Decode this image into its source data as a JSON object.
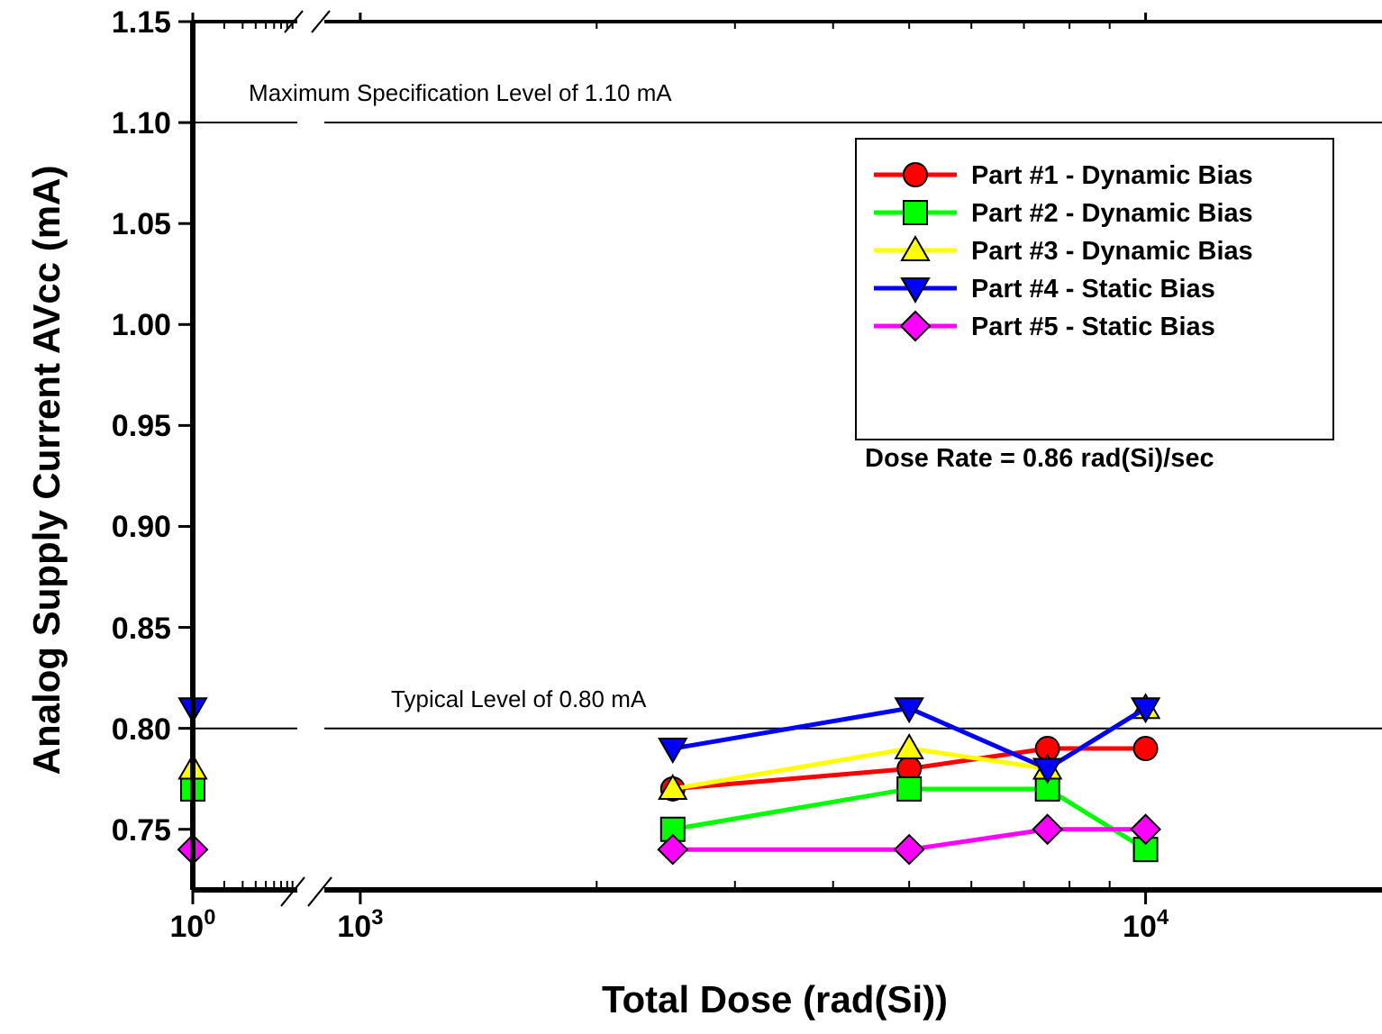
{
  "chart_data": [
    {
      "type": "line",
      "ylabel": "Analog Supply Current AVcc (mA)",
      "categories": [
        "10$^{0}$"
      ],
      "series": [
        {
          "color": "#00ff00",
          "marker": "square",
          "values": [
            0.77
          ]
        },
        {
          "color": "#ffff00",
          "marker": "triangle",
          "values": [
            0.78
          ]
        },
        {
          "color": "#0000ff",
          "marker": "triangle-down",
          "values": [
            0.81
          ]
        },
        {
          "color": "#ff00ff",
          "marker": "diamond",
          "values": [
            0.74
          ]
        }
      ],
      "ylim": [
        0.72,
        1.15
      ],
      "yticks": [
        0.75,
        {
          "value": 0.8,
          "label": "0.80"
        },
        0.85,
        {
          "value": 0.9,
          "label": "0.90"
        },
        0.95,
        {
          "value": 1,
          "label": "1.00"
        },
        1.05,
        {
          "value": 1.1,
          "label": "1.10"
        },
        1.15
      ],
      "ref_lines": [
        {
          "axis": "y",
          "value": 1.1,
          "label": "Maximum Specification Level of 1.10 mA",
          "color": "#000000"
        },
        {
          "axis": "y",
          "value": 0.8,
          "color": "#000000"
        }
      ],
      "grid": false,
      "line_style": "solid"
    },
    {
      "type": "line",
      "xlabel": "Total Dose (rad(Si))",
      "x": [
        2500,
        5000,
        7500,
        10000
      ],
      "series": [
        {
          "name": "Part #1 - Dynamic Bias",
          "color": "#ff0000",
          "marker": "circle",
          "values": [
            0.77,
            0.78,
            0.79,
            0.79
          ]
        },
        {
          "name": "Part #2 - Dynamic Bias",
          "color": "#00ff00",
          "marker": "square",
          "values": [
            0.75,
            0.77,
            0.77,
            0.74
          ]
        },
        {
          "name": "Part #3 - Dynamic Bias",
          "color": "#ffff00",
          "marker": "triangle",
          "values": [
            0.77,
            0.79,
            0.78,
            0.81
          ]
        },
        {
          "name": "Part #4 - Static Bias",
          "color": "#0000ff",
          "marker": "triangle-down",
          "values": [
            0.79,
            0.81,
            0.78,
            0.81
          ]
        },
        {
          "name": "Part #5 - Static Bias",
          "color": "#ff00ff",
          "marker": "diamond",
          "values": [
            0.74,
            0.74,
            0.75,
            0.75
          ]
        }
      ],
      "log": "x",
      "xlim": [
        900,
        20000
      ],
      "xticks": [
        {
          "value": 1000,
          "label": "10$^{3}$"
        },
        {
          "value": 10000,
          "label": "10$^{4}$"
        }
      ],
      "ylim": [
        0.72,
        1.15
      ],
      "tick_labels": "x",
      "ref_lines": [
        {
          "axis": "y",
          "value": 1.1,
          "color": "#000000"
        },
        {
          "axis": "y",
          "value": 0.8,
          "label": "Typical Level of 0.80 mA",
          "color": "#000000"
        }
      ],
      "annotations": [
        "Dose Rate = 0.86 rad(Si)/sec"
      ],
      "legend": "top right",
      "grid": false,
      "line_style": "solid"
    }
  ]
}
